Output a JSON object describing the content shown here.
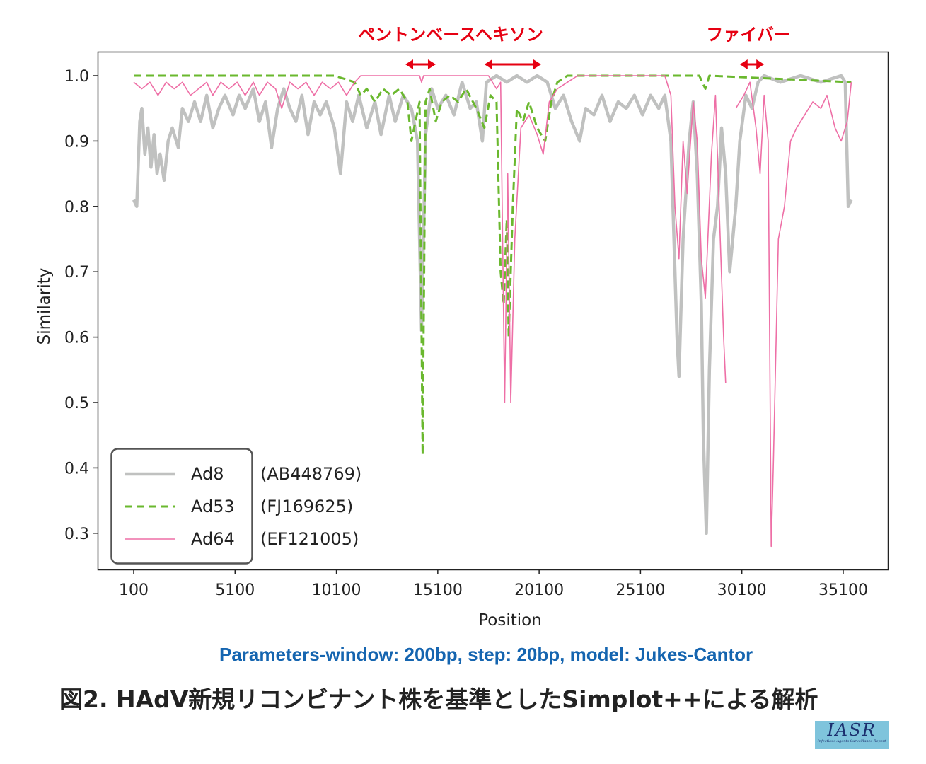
{
  "chart_data": {
    "type": "line",
    "title": "",
    "xlabel": "Position",
    "ylabel": "Similarity",
    "xlim": [
      -1680,
      37300
    ],
    "ylim": [
      0.2446,
      1.0368
    ],
    "xticks": [
      100,
      5100,
      10100,
      15100,
      20100,
      25100,
      30100,
      35100
    ],
    "xtick_labels": [
      "100",
      "5100",
      "10100",
      "15100",
      "20100",
      "25100",
      "30100",
      "35100"
    ],
    "yticks": [
      0.3,
      0.4,
      0.5,
      0.6,
      0.7,
      0.8,
      0.9,
      1.0
    ],
    "ytick_labels": [
      "0.3",
      "0.4",
      "0.5",
      "0.6",
      "0.7",
      "0.8",
      "0.9",
      "1.0"
    ],
    "grid": false,
    "legend_position": "bottom-left",
    "regions": [
      {
        "label": "ペントンベース",
        "start": 13500,
        "end": 15000
      },
      {
        "label": "ヘキソン",
        "start": 17400,
        "end": 20200
      },
      {
        "label": "ファイバー",
        "start": 30000,
        "end": 31200
      }
    ],
    "series": [
      {
        "name": "Ad8",
        "accession": "(AB448769)",
        "color": "#c0c1c0",
        "style": "solid-thick",
        "points": [
          [
            100,
            0.81
          ],
          [
            250,
            0.8
          ],
          [
            400,
            0.93
          ],
          [
            500,
            0.95
          ],
          [
            650,
            0.88
          ],
          [
            800,
            0.92
          ],
          [
            950,
            0.86
          ],
          [
            1100,
            0.91
          ],
          [
            1250,
            0.85
          ],
          [
            1400,
            0.88
          ],
          [
            1600,
            0.84
          ],
          [
            1800,
            0.9
          ],
          [
            2000,
            0.92
          ],
          [
            2300,
            0.89
          ],
          [
            2500,
            0.95
          ],
          [
            2800,
            0.93
          ],
          [
            3100,
            0.96
          ],
          [
            3400,
            0.93
          ],
          [
            3700,
            0.97
          ],
          [
            4000,
            0.92
          ],
          [
            4300,
            0.95
          ],
          [
            4600,
            0.97
          ],
          [
            5000,
            0.94
          ],
          [
            5300,
            0.97
          ],
          [
            5600,
            0.95
          ],
          [
            6000,
            0.98
          ],
          [
            6300,
            0.93
          ],
          [
            6600,
            0.96
          ],
          [
            6900,
            0.89
          ],
          [
            7200,
            0.95
          ],
          [
            7500,
            0.98
          ],
          [
            7800,
            0.95
          ],
          [
            8100,
            0.93
          ],
          [
            8400,
            0.97
          ],
          [
            8700,
            0.91
          ],
          [
            9000,
            0.96
          ],
          [
            9300,
            0.94
          ],
          [
            9600,
            0.96
          ],
          [
            10000,
            0.92
          ],
          [
            10300,
            0.85
          ],
          [
            10600,
            0.96
          ],
          [
            10900,
            0.93
          ],
          [
            11200,
            0.97
          ],
          [
            11600,
            0.92
          ],
          [
            12000,
            0.96
          ],
          [
            12300,
            0.91
          ],
          [
            12700,
            0.97
          ],
          [
            13000,
            0.93
          ],
          [
            13400,
            0.97
          ],
          [
            13800,
            0.95
          ],
          [
            14100,
            0.9
          ],
          [
            14300,
            0.61
          ],
          [
            14500,
            0.91
          ],
          [
            14800,
            0.98
          ],
          [
            15100,
            0.95
          ],
          [
            15500,
            0.97
          ],
          [
            15900,
            0.94
          ],
          [
            16300,
            0.99
          ],
          [
            16700,
            0.95
          ],
          [
            17000,
            0.96
          ],
          [
            17300,
            0.9
          ],
          [
            17500,
            0.99
          ],
          [
            18000,
            1.0
          ],
          [
            18500,
            0.99
          ],
          [
            19000,
            1.0
          ],
          [
            19500,
            0.99
          ],
          [
            20000,
            1.0
          ],
          [
            20500,
            0.99
          ],
          [
            20900,
            0.95
          ],
          [
            21300,
            0.97
          ],
          [
            21700,
            0.93
          ],
          [
            22100,
            0.9
          ],
          [
            22400,
            0.95
          ],
          [
            22800,
            0.94
          ],
          [
            23200,
            0.97
          ],
          [
            23600,
            0.93
          ],
          [
            24000,
            0.96
          ],
          [
            24400,
            0.95
          ],
          [
            24800,
            0.97
          ],
          [
            25200,
            0.94
          ],
          [
            25600,
            0.97
          ],
          [
            26000,
            0.95
          ],
          [
            26300,
            0.97
          ],
          [
            26600,
            0.9
          ],
          [
            26900,
            0.6
          ],
          [
            27000,
            0.54
          ],
          [
            27200,
            0.75
          ],
          [
            27500,
            0.9
          ],
          [
            27700,
            0.96
          ],
          [
            27900,
            0.85
          ],
          [
            28100,
            0.65
          ],
          [
            28200,
            0.45
          ],
          [
            28350,
            0.3
          ],
          [
            28500,
            0.55
          ],
          [
            28700,
            0.75
          ],
          [
            28900,
            0.8
          ],
          [
            29100,
            0.92
          ],
          [
            29300,
            0.85
          ],
          [
            29500,
            0.7
          ],
          [
            29800,
            0.8
          ],
          [
            30000,
            0.9
          ],
          [
            30300,
            0.97
          ],
          [
            30600,
            0.95
          ],
          [
            30900,
            0.99
          ],
          [
            31200,
            1.0
          ],
          [
            32000,
            0.99
          ],
          [
            33000,
            1.0
          ],
          [
            34000,
            0.99
          ],
          [
            35000,
            1.0
          ],
          [
            35200,
            0.99
          ],
          [
            35350,
            0.8
          ],
          [
            35500,
            0.81
          ]
        ]
      },
      {
        "name": "Ad53",
        "accession": "(FJ169625)",
        "color": "#6ab82e",
        "style": "dashed",
        "points": [
          [
            100,
            1.0
          ],
          [
            2000,
            1.0
          ],
          [
            5000,
            1.0
          ],
          [
            8000,
            1.0
          ],
          [
            10000,
            1.0
          ],
          [
            11000,
            0.99
          ],
          [
            11300,
            0.97
          ],
          [
            11600,
            0.98
          ],
          [
            12000,
            0.96
          ],
          [
            12400,
            0.98
          ],
          [
            12800,
            0.97
          ],
          [
            13200,
            0.98
          ],
          [
            13600,
            0.96
          ],
          [
            13800,
            0.9
          ],
          [
            14000,
            0.93
          ],
          [
            14200,
            0.96
          ],
          [
            14350,
            0.42
          ],
          [
            14500,
            0.96
          ],
          [
            14700,
            0.98
          ],
          [
            15000,
            0.93
          ],
          [
            15300,
            0.96
          ],
          [
            15700,
            0.97
          ],
          [
            16100,
            0.96
          ],
          [
            16500,
            0.98
          ],
          [
            17000,
            0.95
          ],
          [
            17400,
            0.92
          ],
          [
            17700,
            0.97
          ],
          [
            18000,
            0.96
          ],
          [
            18200,
            0.7
          ],
          [
            18350,
            0.65
          ],
          [
            18500,
            0.78
          ],
          [
            18600,
            0.6
          ],
          [
            18800,
            0.8
          ],
          [
            19000,
            0.95
          ],
          [
            19300,
            0.93
          ],
          [
            19600,
            0.96
          ],
          [
            20000,
            0.92
          ],
          [
            20400,
            0.9
          ],
          [
            20700,
            0.96
          ],
          [
            21000,
            0.99
          ],
          [
            21500,
            1.0
          ],
          [
            28000,
            1.0
          ],
          [
            28300,
            0.98
          ],
          [
            28500,
            1.0
          ],
          [
            35500,
            0.99
          ]
        ]
      },
      {
        "name": "Ad64",
        "accession": "(EF121005)",
        "color": "#ee6fa6",
        "style": "solid-thin",
        "points": [
          [
            100,
            0.99
          ],
          [
            500,
            0.98
          ],
          [
            900,
            0.99
          ],
          [
            1300,
            0.97
          ],
          [
            1700,
            0.99
          ],
          [
            2100,
            0.98
          ],
          [
            2500,
            0.99
          ],
          [
            2900,
            0.97
          ],
          [
            3300,
            0.98
          ],
          [
            3700,
            0.99
          ],
          [
            4000,
            0.97
          ],
          [
            4400,
            0.99
          ],
          [
            4800,
            0.98
          ],
          [
            5200,
            0.99
          ],
          [
            5600,
            0.97
          ],
          [
            6000,
            0.99
          ],
          [
            6300,
            0.97
          ],
          [
            6700,
            0.99
          ],
          [
            7100,
            0.98
          ],
          [
            7400,
            0.95
          ],
          [
            7800,
            0.99
          ],
          [
            8200,
            0.98
          ],
          [
            8600,
            0.99
          ],
          [
            9000,
            0.97
          ],
          [
            9400,
            0.99
          ],
          [
            9800,
            0.98
          ],
          [
            10200,
            0.99
          ],
          [
            10600,
            0.97
          ],
          [
            11000,
            0.99
          ],
          [
            11300,
            1.0
          ],
          [
            14200,
            1.0
          ],
          [
            14300,
            0.99
          ],
          [
            14400,
            1.0
          ],
          [
            17600,
            1.0
          ],
          [
            18000,
            0.98
          ],
          [
            18200,
            0.99
          ],
          [
            18400,
            0.5
          ],
          [
            18550,
            0.85
          ],
          [
            18700,
            0.5
          ],
          [
            18900,
            0.75
          ],
          [
            19200,
            0.92
          ],
          [
            19600,
            0.94
          ],
          [
            20000,
            0.91
          ],
          [
            20300,
            0.88
          ],
          [
            20600,
            0.96
          ],
          [
            21000,
            0.98
          ],
          [
            21500,
            0.99
          ],
          [
            22000,
            1.0
          ],
          [
            26300,
            1.0
          ],
          [
            26600,
            0.97
          ],
          [
            26800,
            0.8
          ],
          [
            27000,
            0.72
          ],
          [
            27200,
            0.9
          ],
          [
            27400,
            0.82
          ],
          [
            27700,
            0.96
          ],
          [
            27900,
            0.9
          ],
          [
            28100,
            0.72
          ],
          [
            28300,
            0.66
          ],
          [
            28600,
            0.88
          ],
          [
            28800,
            0.97
          ],
          [
            29000,
            0.78
          ],
          [
            29200,
            0.6
          ],
          [
            29300,
            0.53
          ],
          null,
          [
            29800,
            0.95
          ],
          [
            30200,
            0.97
          ],
          [
            30500,
            0.99
          ],
          [
            30800,
            0.92
          ],
          [
            31000,
            0.85
          ],
          [
            31200,
            0.97
          ],
          [
            31400,
            0.9
          ],
          [
            31550,
            0.28
          ],
          [
            31650,
            0.4
          ],
          [
            31900,
            0.75
          ],
          [
            32200,
            0.8
          ],
          [
            32500,
            0.9
          ],
          [
            32800,
            0.92
          ],
          [
            33200,
            0.94
          ],
          [
            33600,
            0.96
          ],
          [
            34000,
            0.95
          ],
          [
            34300,
            0.97
          ],
          [
            34700,
            0.92
          ],
          [
            35000,
            0.9
          ],
          [
            35300,
            0.93
          ],
          [
            35500,
            0.99
          ]
        ]
      }
    ]
  },
  "footer": {
    "parameters": "Parameters-window: 200bp, step: 20bp, model: Jukes-Cantor",
    "caption": "図2.  HAdV新規リコンビナント株を基準としたSimplot++による解析",
    "logo_main": "IASR",
    "logo_sub": "Infectious Agents Surveillance Report"
  }
}
